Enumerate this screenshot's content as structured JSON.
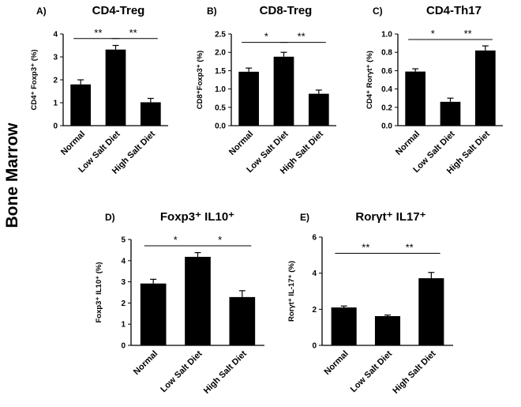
{
  "side_label": "Bone Marrow",
  "chart_data": [
    {
      "type": "bar",
      "panel": "A)",
      "title": "CD4-Treg",
      "ylabel": "CD4⁺ Foxp3⁺ (%)",
      "categories": [
        "Normal",
        "Low Salt Diet",
        "High Salt Diet"
      ],
      "values": [
        1.8,
        3.32,
        1.02
      ],
      "errors": [
        0.2,
        0.18,
        0.17
      ],
      "ylim": [
        0,
        4
      ],
      "yticks": [
        "0",
        "1",
        "2",
        "3",
        "4"
      ],
      "significance": [
        {
          "from": 0,
          "to": 1,
          "label": "**",
          "y": 3.8
        },
        {
          "from": 1,
          "to": 2,
          "label": "**",
          "y": 3.8
        }
      ]
    },
    {
      "type": "bar",
      "panel": "B)",
      "title": "CD8-Treg",
      "ylabel": "CD8⁺Foxp3⁺ (%)",
      "categories": [
        "Normal",
        "Low Salt Diet",
        "High Salt Diet"
      ],
      "values": [
        1.47,
        1.88,
        0.87
      ],
      "errors": [
        0.1,
        0.12,
        0.1
      ],
      "ylim": [
        0,
        2.5
      ],
      "yticks": [
        "0.0",
        "0.5",
        "1.0",
        "1.5",
        "2.0",
        "2.5"
      ],
      "significance": [
        {
          "from": 0,
          "to": 1,
          "label": "*",
          "y": 2.27
        },
        {
          "from": 1,
          "to": 2,
          "label": "**",
          "y": 2.27
        }
      ]
    },
    {
      "type": "bar",
      "panel": "C)",
      "title": "CD4-Th17",
      "ylabel": "CD4⁺ Rorγt⁺ (%)",
      "categories": [
        "Normal",
        "Low Salt Diet",
        "High Salt Diet"
      ],
      "values": [
        0.59,
        0.26,
        0.82
      ],
      "errors": [
        0.03,
        0.04,
        0.05
      ],
      "ylim": [
        0,
        1.0
      ],
      "yticks": [
        "0.0",
        "0.2",
        "0.4",
        "0.6",
        "0.8",
        "1.0"
      ],
      "significance": [
        {
          "from": 0,
          "to": 1,
          "label": "*",
          "y": 0.94
        },
        {
          "from": 1,
          "to": 2,
          "label": "**",
          "y": 0.94
        }
      ]
    },
    {
      "type": "bar",
      "panel": "D)",
      "title": "Foxp3⁺ IL10⁺",
      "ylabel": "Foxp3⁺ IL10⁺ (%)",
      "categories": [
        "Normal",
        "Low Salt Diet",
        "High Salt Diet"
      ],
      "values": [
        2.92,
        4.18,
        2.28
      ],
      "errors": [
        0.2,
        0.2,
        0.3
      ],
      "ylim": [
        0,
        5
      ],
      "yticks": [
        "0",
        "1",
        "2",
        "3",
        "4",
        "5"
      ],
      "significance": [
        {
          "from": 0,
          "to": 1,
          "label": "*",
          "y": 4.7
        },
        {
          "from": 1,
          "to": 2,
          "label": "*",
          "y": 4.7
        }
      ]
    },
    {
      "type": "bar",
      "panel": "E)",
      "title": "Rorγt⁺ IL17⁺",
      "ylabel": "Rorγt⁺ IL-17⁺ (%)",
      "categories": [
        "Normal",
        "Low Salt Diet",
        "High Salt Diet"
      ],
      "values": [
        2.1,
        1.62,
        3.72
      ],
      "errors": [
        0.08,
        0.06,
        0.32
      ],
      "ylim": [
        0,
        6
      ],
      "yticks": [
        "0",
        "2",
        "4",
        "6"
      ],
      "significance": [
        {
          "from": 0,
          "to": 1,
          "label": "**",
          "y": 5.1
        },
        {
          "from": 1,
          "to": 2,
          "label": "**",
          "y": 5.1
        }
      ]
    }
  ]
}
